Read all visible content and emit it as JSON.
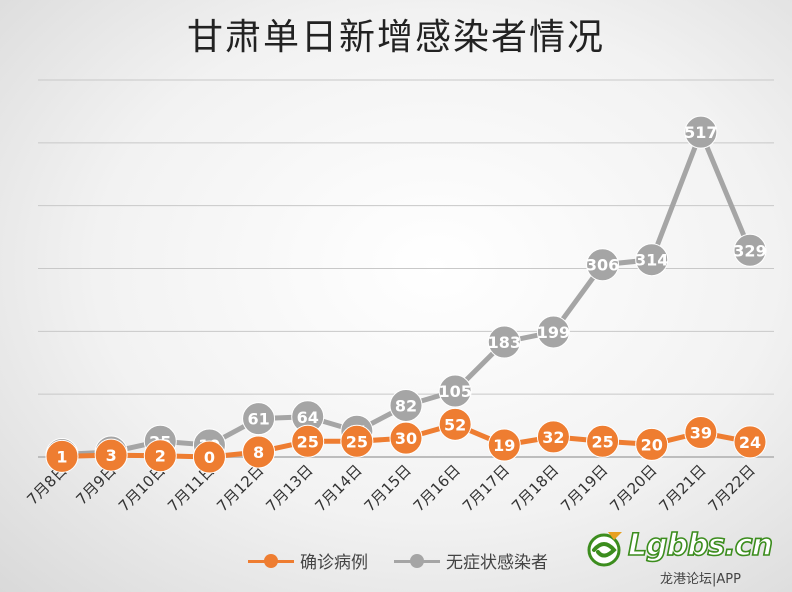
{
  "chart_data": {
    "type": "line",
    "title": "甘肃单日新增感染者情况",
    "categories": [
      "7月8日",
      "7月9日",
      "7月10日",
      "7月11日",
      "7月12日",
      "7月13日",
      "7月14日",
      "7月15日",
      "7月16日",
      "7月17日",
      "7月18日",
      "7月19日",
      "7月20日",
      "7月21日",
      "7月22日"
    ],
    "ylim": [
      0,
      600
    ],
    "grid": true,
    "legend_position": "bottom",
    "series": [
      {
        "name": "确诊病例",
        "color": "#ee7d31",
        "values": [
          1,
          3,
          2,
          0,
          8,
          25,
          25,
          30,
          52,
          19,
          32,
          25,
          20,
          39,
          24
        ]
      },
      {
        "name": "无症状感染者",
        "color": "#a5a5a5",
        "values": [
          4,
          8,
          25,
          19,
          61,
          64,
          41,
          82,
          105,
          183,
          199,
          306,
          314,
          517,
          329
        ]
      }
    ]
  },
  "watermark": {
    "brand": "Lgbbs.cn",
    "sub": "龙港论坛|APP"
  }
}
